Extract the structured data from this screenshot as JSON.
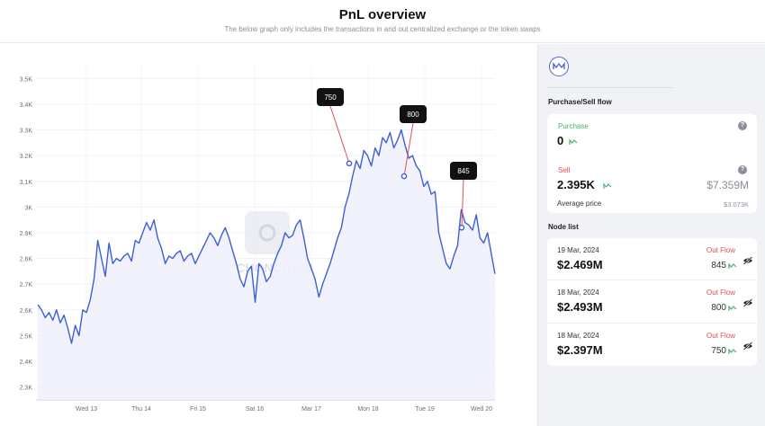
{
  "header": {
    "title": "PnL overview",
    "subtitle": "The below graph only includes the transactions in and out centralized exchange or the token swaps"
  },
  "watermark": "CHONCHAIN",
  "chart_data": {
    "type": "area",
    "y_ticks": [
      "3.5K",
      "3.4K",
      "3.3K",
      "3.2K",
      "3.1K",
      "3K",
      "2.9K",
      "2.8K",
      "2.7K",
      "2.6K",
      "2.5K",
      "2.4K",
      "2.3K"
    ],
    "ylim": [
      2250,
      3550
    ],
    "x_ticks": [
      "Wed 13",
      "Thu 14",
      "Fri 15",
      "Sat 16",
      "Mar 17",
      "Mon 18",
      "Tue 19",
      "Wed 20"
    ],
    "series": [
      {
        "values": [
          2620,
          2600,
          2570,
          2590,
          2560,
          2600,
          2550,
          2580,
          2530,
          2470,
          2540,
          2500,
          2600,
          2590,
          2640,
          2720,
          2870,
          2800,
          2730,
          2860,
          2780,
          2800,
          2790,
          2810,
          2820,
          2790,
          2870,
          2860,
          2900,
          2940,
          2910,
          2950,
          2880,
          2840,
          2780,
          2810,
          2800,
          2820,
          2830,
          2790,
          2810,
          2820,
          2780,
          2810,
          2840,
          2870,
          2900,
          2880,
          2850,
          2890,
          2920,
          2880,
          2830,
          2780,
          2720,
          2690,
          2750,
          2770,
          2630,
          2780,
          2760,
          2710,
          2730,
          2780,
          2820,
          2850,
          2900,
          2880,
          2890,
          2930,
          2950,
          2880,
          2800,
          2760,
          2720,
          2650,
          2700,
          2740,
          2780,
          2830,
          2880,
          2920,
          3000,
          3050,
          3120,
          3180,
          3150,
          3220,
          3200,
          3160,
          3230,
          3200,
          3270,
          3250,
          3290,
          3230,
          3260,
          3300,
          3240,
          3190,
          3200,
          3160,
          3140,
          3080,
          3100,
          3050,
          3060,
          2900,
          2840,
          2780,
          2760,
          2810,
          2850,
          2990,
          2940,
          2930,
          2910,
          2970,
          2880,
          2860,
          2900,
          2820,
          2740
        ]
      }
    ],
    "annotations": [
      {
        "label": "750",
        "value": 3170
      },
      {
        "label": "800",
        "value": 3120
      },
      {
        "label": "845",
        "value": 2920
      }
    ]
  },
  "sidebar": {
    "flow_title": "Purchase/Sell flow",
    "purchase": {
      "label": "Purchase",
      "amount": "0"
    },
    "sell": {
      "label": "Sell",
      "amount": "2.395K",
      "usd": "$7.359M",
      "avg_label": "Average price",
      "avg_value": "$3.073K"
    },
    "node_title": "Node list",
    "nodes": [
      {
        "date": "19 Mar, 2024",
        "flow": "Out Flow",
        "amount": "$2.469M",
        "qty": "845"
      },
      {
        "date": "18 Mar, 2024",
        "flow": "Out Flow",
        "amount": "$2.493M",
        "qty": "800"
      },
      {
        "date": "18 Mar, 2024",
        "flow": "Out Flow",
        "amount": "$2.397M",
        "qty": "750"
      }
    ]
  },
  "colors": {
    "line": "#3d5fd6",
    "fill": "#eef0fb",
    "inflow": "#44b36e",
    "outflow": "#e05252"
  }
}
